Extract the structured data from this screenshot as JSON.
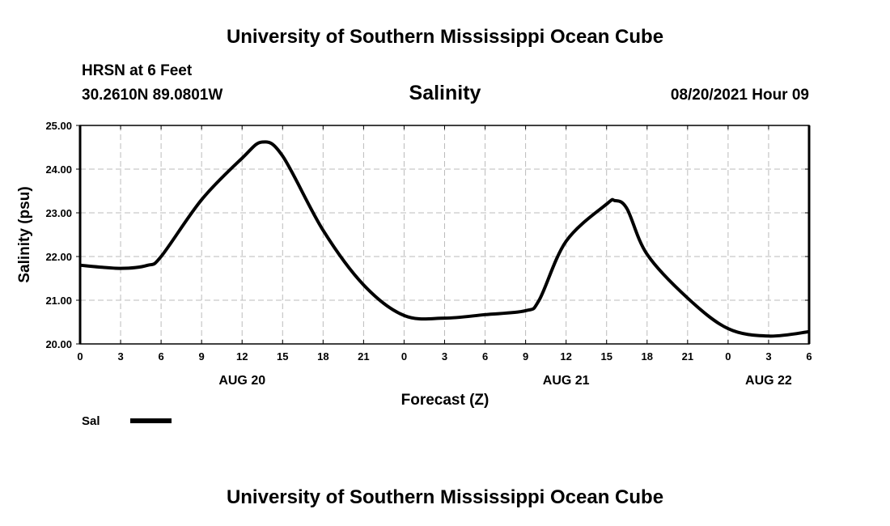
{
  "header": {
    "title": "University of Southern Mississippi Ocean Cube",
    "station": "HRSN at 6 Feet",
    "coords": "30.2610N  89.0801W",
    "variable": "Salinity",
    "datetime": "08/20/2021 Hour 09"
  },
  "footer": {
    "title": "University of Southern Mississippi Ocean Cube"
  },
  "chart_data": {
    "type": "line",
    "title": "Salinity",
    "xlabel": "Forecast (Z)",
    "ylabel": "Salinity (psu)",
    "ylim": [
      20,
      25
    ],
    "xlim": [
      0,
      54
    ],
    "grid": true,
    "yticks": [
      "20.00",
      "21.00",
      "22.00",
      "23.00",
      "24.00",
      "25.00"
    ],
    "xtick_labels": [
      "0",
      "3",
      "6",
      "9",
      "12",
      "15",
      "18",
      "21",
      "0",
      "3",
      "6",
      "9",
      "12",
      "15",
      "18",
      "21",
      "0",
      "3",
      "6"
    ],
    "date_labels": [
      {
        "label": "AUG 20",
        "hour": 12
      },
      {
        "label": "AUG 21",
        "hour": 36
      },
      {
        "label": "AUG 22",
        "hour": 51
      }
    ],
    "legend": {
      "placement": "bottom-left",
      "entries": [
        {
          "name": "Sal",
          "color": "#000000"
        }
      ]
    },
    "series": [
      {
        "name": "Sal",
        "color": "#000000",
        "x": [
          0,
          3,
          5,
          6,
          9,
          12,
          13.5,
          15,
          18,
          21,
          24,
          27,
          30,
          33,
          34,
          36,
          39,
          39.6,
          40.5,
          42,
          45,
          48,
          51,
          54
        ],
        "y": [
          21.8,
          21.73,
          21.8,
          22.0,
          23.3,
          24.25,
          24.62,
          24.3,
          22.6,
          21.35,
          20.65,
          20.59,
          20.67,
          20.76,
          21.0,
          22.35,
          23.2,
          23.28,
          23.1,
          22.05,
          21.05,
          20.35,
          20.18,
          20.28
        ]
      }
    ]
  }
}
